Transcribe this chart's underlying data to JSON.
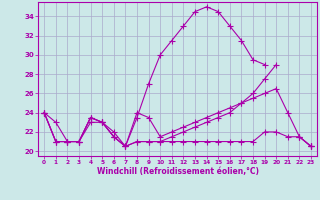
{
  "xlabel": "Windchill (Refroidissement éolien,°C)",
  "bg_color": "#cce8e8",
  "line_color": "#aa00aa",
  "grid_color": "#aaaacc",
  "x": [
    0,
    1,
    2,
    3,
    4,
    5,
    6,
    7,
    8,
    9,
    10,
    11,
    12,
    13,
    14,
    15,
    16,
    17,
    18,
    19,
    20,
    21,
    22,
    23
  ],
  "series1": [
    24.0,
    23.0,
    21.0,
    21.0,
    23.0,
    23.0,
    22.0,
    20.5,
    23.5,
    27.0,
    30.0,
    31.5,
    33.0,
    34.5,
    35.0,
    34.5,
    33.0,
    31.5,
    29.5,
    29.0,
    null,
    null,
    21.5,
    20.5
  ],
  "series2": [
    24.0,
    21.0,
    21.0,
    21.0,
    23.5,
    23.0,
    21.5,
    20.5,
    21.0,
    21.0,
    21.0,
    21.5,
    22.0,
    22.5,
    23.0,
    23.5,
    24.0,
    25.0,
    26.0,
    27.5,
    29.0,
    null,
    null,
    20.5
  ],
  "series3": [
    24.0,
    21.0,
    21.0,
    21.0,
    23.5,
    23.0,
    21.5,
    20.5,
    21.0,
    21.0,
    21.0,
    21.0,
    21.0,
    21.0,
    21.0,
    21.0,
    21.0,
    21.0,
    21.0,
    22.0,
    22.0,
    21.5,
    21.5,
    20.5
  ],
  "series4": [
    24.0,
    21.0,
    21.0,
    21.0,
    23.5,
    23.0,
    21.5,
    20.5,
    24.0,
    23.5,
    21.5,
    22.0,
    22.5,
    23.0,
    23.5,
    24.0,
    24.5,
    25.0,
    25.5,
    26.0,
    26.5,
    24.0,
    21.5,
    20.5
  ],
  "ylim": [
    19.5,
    35.5
  ],
  "xlim": [
    -0.5,
    23.5
  ],
  "yticks": [
    20,
    22,
    24,
    26,
    28,
    30,
    32,
    34
  ],
  "xticks": [
    0,
    1,
    2,
    3,
    4,
    5,
    6,
    7,
    8,
    9,
    10,
    11,
    12,
    13,
    14,
    15,
    16,
    17,
    18,
    19,
    20,
    21,
    22,
    23
  ]
}
